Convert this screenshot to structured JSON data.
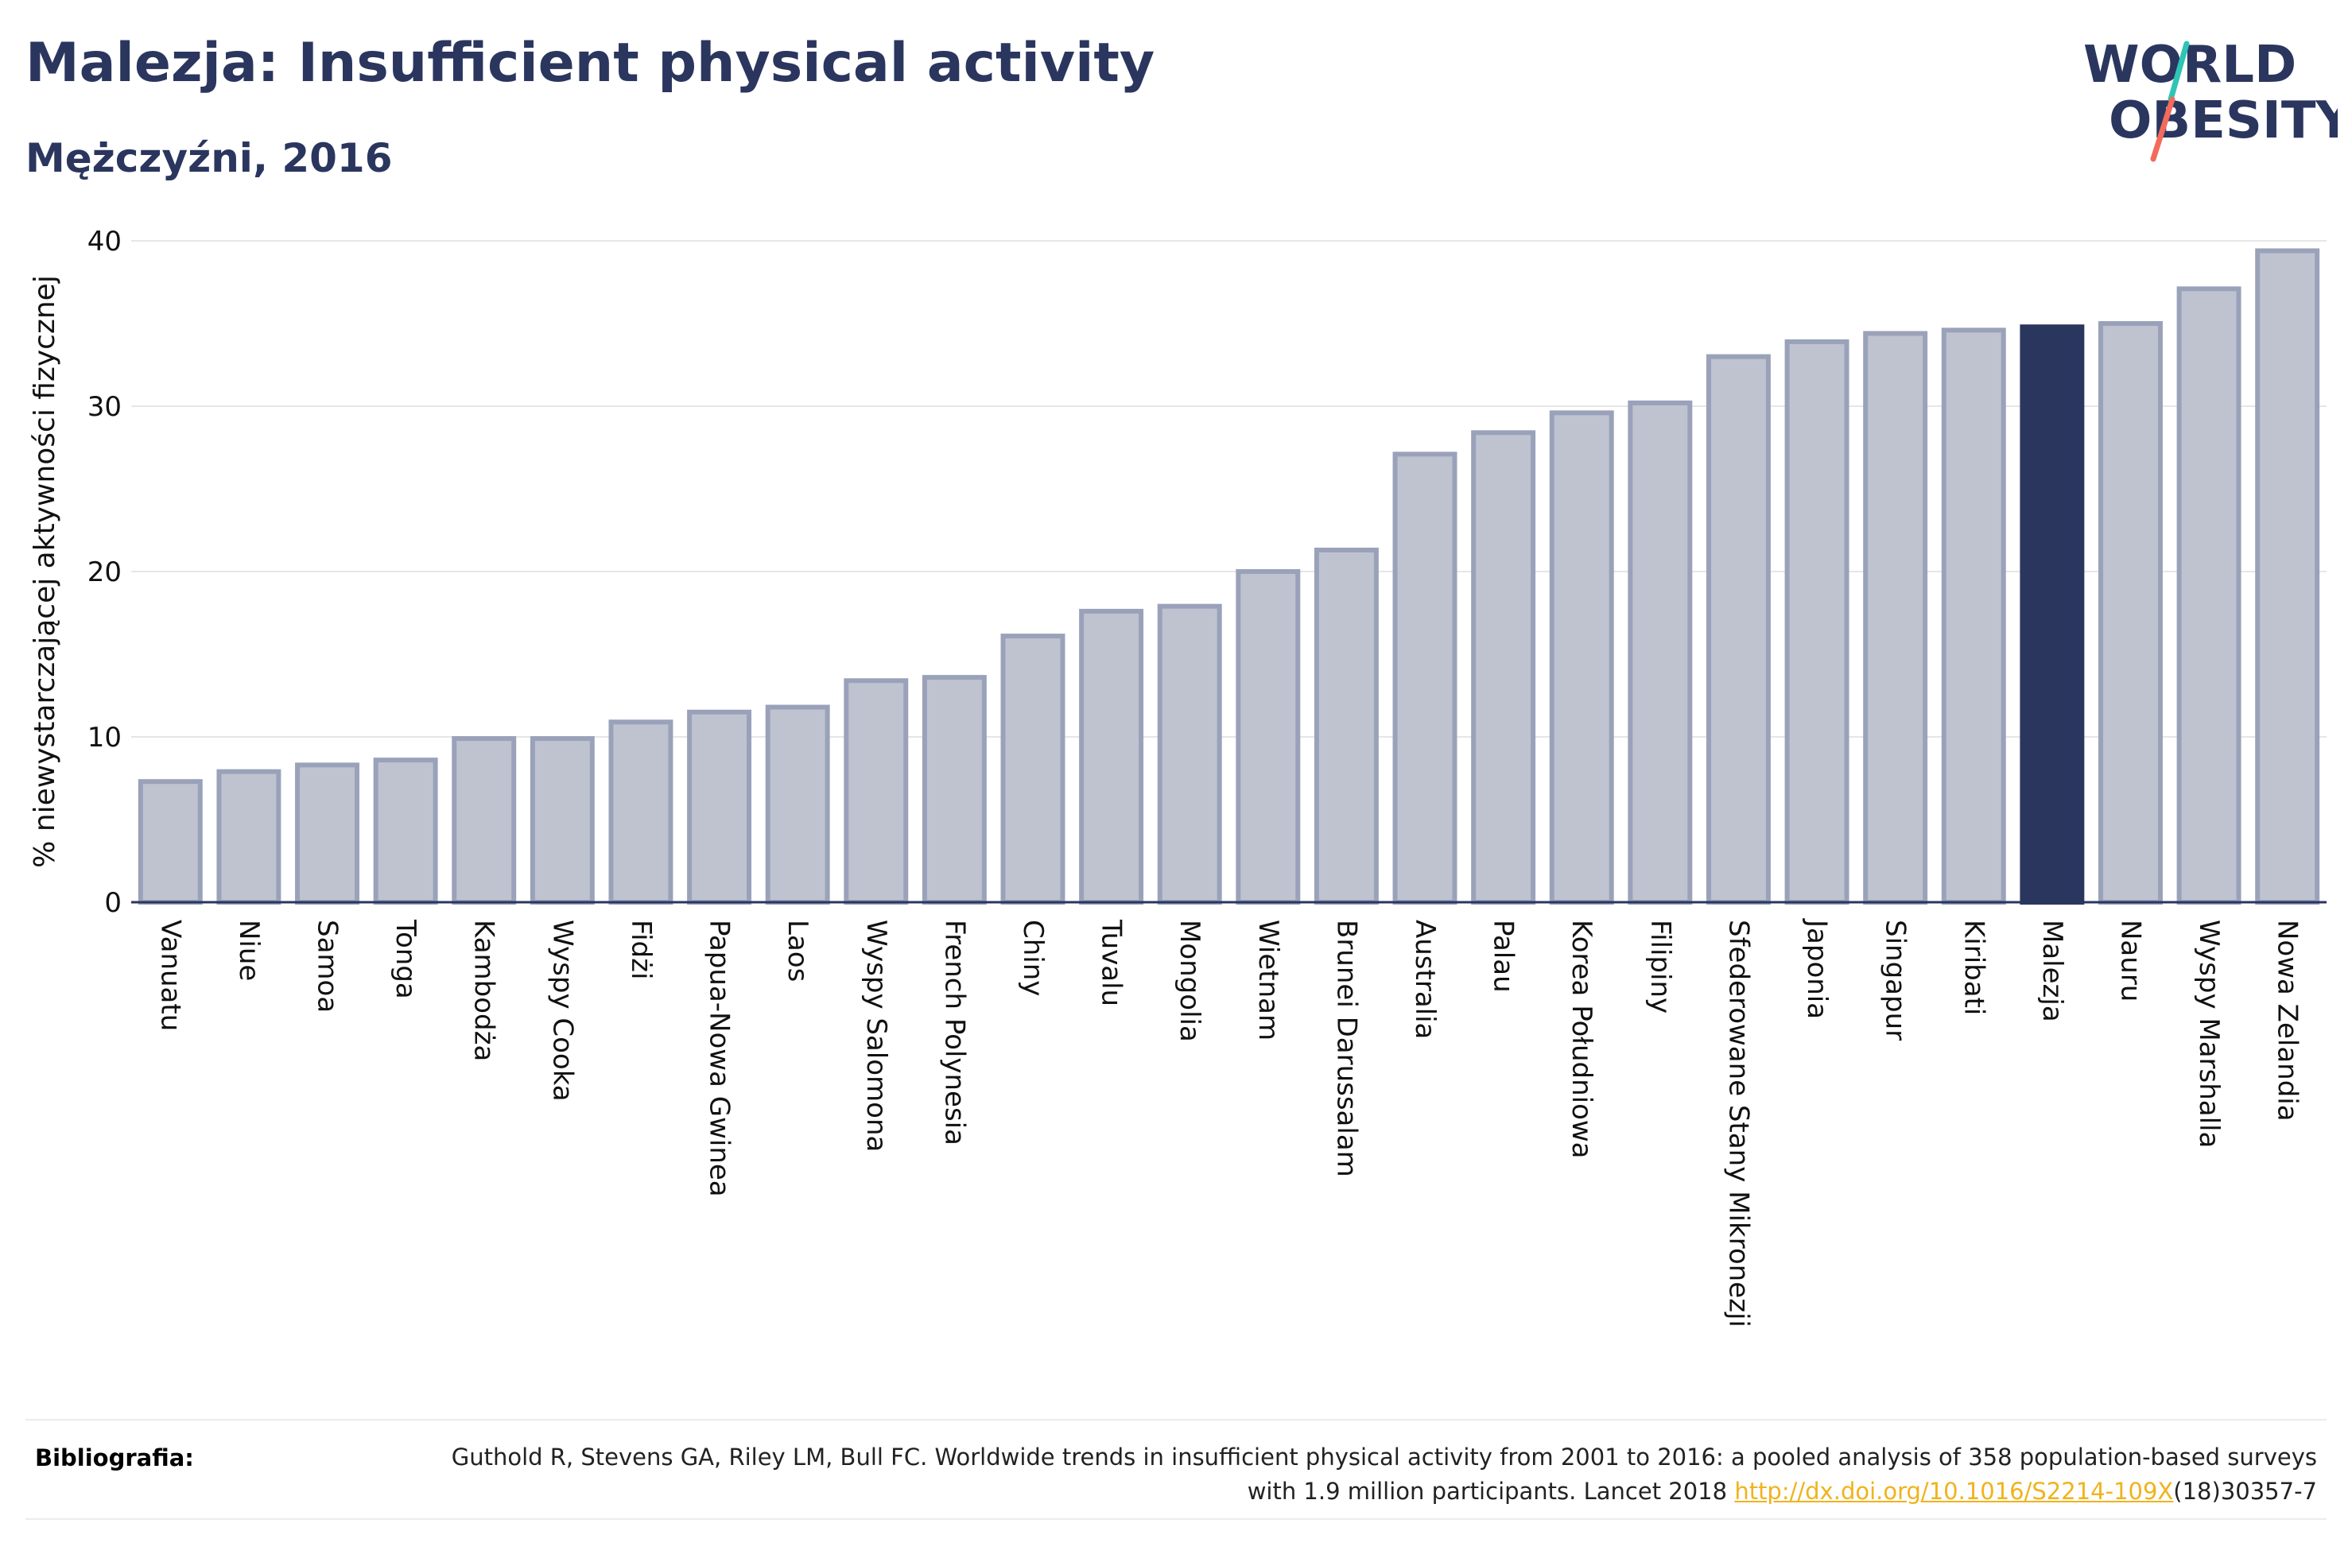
{
  "header": {
    "title": "Malezja: Insufficient physical activity",
    "subtitle": "Mężczyźni, 2016"
  },
  "logo": {
    "line1": "WORLD",
    "line2": "OBESITY",
    "colors": {
      "text": "#2b365f",
      "teal": "#2ec4b6",
      "coral": "#f26b5b"
    }
  },
  "chart_data": {
    "type": "bar",
    "ylabel": "% niewystarczającej aktywności fizycznej",
    "xlabel": "",
    "ylim": [
      0,
      40
    ],
    "yticks": [
      0,
      10,
      20,
      30,
      40
    ],
    "grid": true,
    "highlight": "Malezja",
    "colors": {
      "bar": "#bfc3d0",
      "bar_edge": "#9aa2ba",
      "highlight": "#2b365f"
    },
    "categories": [
      "Vanuatu",
      "Niue",
      "Samoa",
      "Tonga",
      "Kambodża",
      "Wyspy Cooka",
      "Fidżi",
      "Papua-Nowa Gwinea",
      "Laos",
      "Wyspy Salomona",
      "French Polynesia",
      "Chiny",
      "Tuvalu",
      "Mongolia",
      "Wietnam",
      "Brunei Darussalam",
      "Australia",
      "Palau",
      "Korea Południowa",
      "Filipiny",
      "Sfederowane Stany Mikronezji",
      "Japonia",
      "Singapur",
      "Kiribati",
      "Malezja",
      "Nauru",
      "Wyspy Marshalla",
      "Nowa Zelandia"
    ],
    "values": [
      7.3,
      7.9,
      8.3,
      8.6,
      9.9,
      9.9,
      10.9,
      11.5,
      11.8,
      13.4,
      13.6,
      16.1,
      17.6,
      17.9,
      20.0,
      21.3,
      27.1,
      28.4,
      29.6,
      30.2,
      33.0,
      33.9,
      34.4,
      34.6,
      34.8,
      35.0,
      37.1,
      39.4
    ]
  },
  "footer": {
    "label": "Bibliografia:",
    "text_before": "Guthold R, Stevens GA, Riley LM, Bull FC. Worldwide trends in insufficient physical activity from 2001 to 2016: a pooled analysis of 358 population-based surveys with 1.9 million participants. Lancet 2018 ",
    "link": "http://dx.doi.org/10.1016/S2214-109X",
    "text_after": "(18)30357-7"
  }
}
